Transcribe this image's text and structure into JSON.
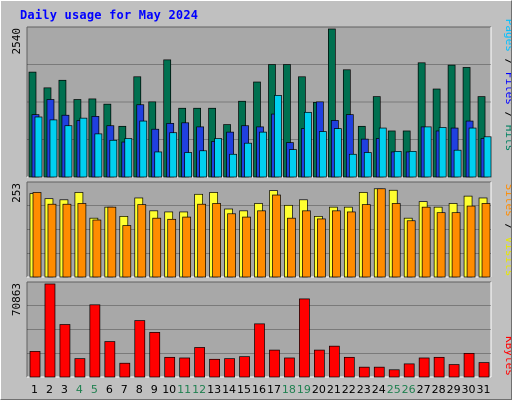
{
  "title": "Daily usage for May 2024",
  "colors": {
    "hits": "#007050",
    "files": "#2040e0",
    "pages": "#00d0f0",
    "visits": "#ffff30",
    "sites": "#ff8c00",
    "kbytes": "#ff0000",
    "weekend_day": "#208050",
    "weekday_day": "#000000",
    "panel_bg": "#a8a8a8",
    "grid": "#000000"
  },
  "legend_top": [
    {
      "text": "Pages",
      "color": "#00c0ff"
    },
    {
      "text": " / ",
      "color": "#000000"
    },
    {
      "text": "Files",
      "color": "#0000ff"
    },
    {
      "text": " / ",
      "color": "#000000"
    },
    {
      "text": "Hits",
      "color": "#008060"
    }
  ],
  "legend_mid": [
    {
      "text": "Sites",
      "color": "#ff8c00"
    },
    {
      "text": " / ",
      "color": "#000000"
    },
    {
      "text": "Visits",
      "color": "#e8e800"
    }
  ],
  "legend_bottom": [
    {
      "text": "KBytes",
      "color": "#ff0000"
    }
  ],
  "chart_data": [
    {
      "type": "bar",
      "panel": "top",
      "ymax_label": "2540",
      "ylim": [
        0,
        2540
      ],
      "categories": [
        "1",
        "2",
        "3",
        "4",
        "5",
        "6",
        "7",
        "8",
        "9",
        "10",
        "11",
        "12",
        "13",
        "14",
        "15",
        "16",
        "17",
        "18",
        "19",
        "20",
        "21",
        "22",
        "23",
        "24",
        "25",
        "26",
        "27",
        "28",
        "29",
        "30",
        "31"
      ],
      "series": [
        {
          "name": "Hits",
          "values": [
            1800,
            1530,
            1660,
            1330,
            1340,
            1250,
            870,
            1720,
            1290,
            2010,
            1180,
            1180,
            1180,
            900,
            1300,
            1630,
            1930,
            1930,
            1720,
            1280,
            2540,
            1840,
            870,
            1380,
            790,
            790,
            1960,
            1510,
            1920,
            1880,
            1380
          ]
        },
        {
          "name": "Files",
          "values": [
            1070,
            1330,
            1060,
            970,
            1040,
            880,
            600,
            1240,
            820,
            920,
            930,
            860,
            610,
            770,
            880,
            860,
            1080,
            590,
            830,
            1290,
            970,
            1070,
            650,
            660,
            430,
            430,
            860,
            790,
            840,
            960,
            660
          ]
        },
        {
          "name": "Pages",
          "values": [
            1030,
            980,
            880,
            1010,
            740,
            630,
            660,
            960,
            430,
            760,
            420,
            450,
            660,
            390,
            580,
            770,
            1400,
            470,
            1110,
            780,
            830,
            390,
            420,
            840,
            440,
            440,
            860,
            850,
            460,
            840,
            690
          ]
        }
      ]
    },
    {
      "type": "bar",
      "panel": "middle",
      "ymax_label": "253",
      "ylim": [
        0,
        253
      ],
      "categories": [
        "1",
        "2",
        "3",
        "4",
        "5",
        "6",
        "7",
        "8",
        "9",
        "10",
        "11",
        "12",
        "13",
        "14",
        "15",
        "16",
        "17",
        "18",
        "19",
        "20",
        "21",
        "22",
        "23",
        "24",
        "25",
        "26",
        "27",
        "28",
        "29",
        "30",
        "31"
      ],
      "series": [
        {
          "name": "Visits",
          "values": [
            227,
            213,
            210,
            230,
            160,
            190,
            165,
            215,
            180,
            177,
            177,
            225,
            230,
            185,
            180,
            200,
            235,
            195,
            210,
            165,
            190,
            190,
            230,
            240,
            236,
            160,
            205,
            190,
            200,
            220,
            215
          ]
        },
        {
          "name": "Sites",
          "values": [
            230,
            198,
            198,
            200,
            155,
            190,
            140,
            197,
            160,
            157,
            163,
            198,
            200,
            172,
            163,
            180,
            223,
            160,
            180,
            158,
            180,
            177,
            197,
            240,
            200,
            153,
            190,
            175,
            175,
            193,
            200
          ]
        }
      ]
    },
    {
      "type": "bar",
      "panel": "bottom",
      "ymax_label": "70863",
      "ylim": [
        0,
        70863
      ],
      "categories": [
        "1",
        "2",
        "3",
        "4",
        "5",
        "6",
        "7",
        "8",
        "9",
        "10",
        "11",
        "12",
        "13",
        "14",
        "15",
        "16",
        "17",
        "18",
        "19",
        "20",
        "21",
        "22",
        "23",
        "24",
        "25",
        "26",
        "27",
        "28",
        "29",
        "30",
        "31"
      ],
      "series": [
        {
          "name": "KBytes",
          "values": [
            19500,
            70863,
            40000,
            14000,
            55000,
            27000,
            10500,
            43000,
            34000,
            15000,
            14500,
            22500,
            13500,
            14000,
            15500,
            40500,
            20500,
            14500,
            59500,
            20500,
            23500,
            15000,
            7500,
            7500,
            5500,
            10000,
            14500,
            15000,
            9500,
            18000,
            11000
          ]
        }
      ]
    }
  ],
  "days": [
    "1",
    "2",
    "3",
    "4",
    "5",
    "6",
    "7",
    "8",
    "9",
    "10",
    "11",
    "12",
    "13",
    "14",
    "15",
    "16",
    "17",
    "18",
    "19",
    "20",
    "21",
    "22",
    "23",
    "24",
    "25",
    "26",
    "27",
    "28",
    "29",
    "30",
    "31"
  ],
  "weekend_days": [
    "4",
    "5",
    "11",
    "12",
    "18",
    "19",
    "25",
    "26"
  ]
}
